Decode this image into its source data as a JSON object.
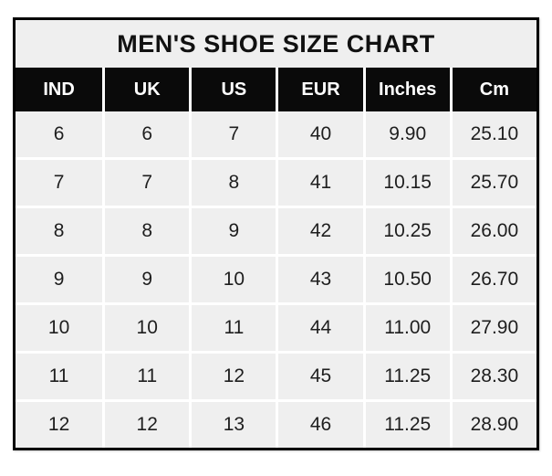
{
  "chart_data": {
    "type": "table",
    "title": "MEN'S SHOE SIZE CHART",
    "columns": [
      "IND",
      "UK",
      "US",
      "EUR",
      "Inches",
      "Cm"
    ],
    "rows": [
      [
        "6",
        "6",
        "7",
        "40",
        "9.90",
        "25.10"
      ],
      [
        "7",
        "7",
        "8",
        "41",
        "10.15",
        "25.70"
      ],
      [
        "8",
        "8",
        "9",
        "42",
        "10.25",
        "26.00"
      ],
      [
        "9",
        "9",
        "10",
        "43",
        "10.50",
        "26.70"
      ],
      [
        "10",
        "10",
        "11",
        "44",
        "11.00",
        "27.90"
      ],
      [
        "11",
        "11",
        "12",
        "45",
        "11.25",
        "28.30"
      ],
      [
        "12",
        "12",
        "13",
        "46",
        "11.25",
        "28.90"
      ]
    ]
  },
  "colors": {
    "outer_border": "#000000",
    "header_bg": "#0a0a0a",
    "header_text": "#ffffff",
    "cell_bg": "#efefef",
    "grid_line": "#ffffff",
    "body_text": "#1e1e1e",
    "page_bg": "#ffffff"
  }
}
